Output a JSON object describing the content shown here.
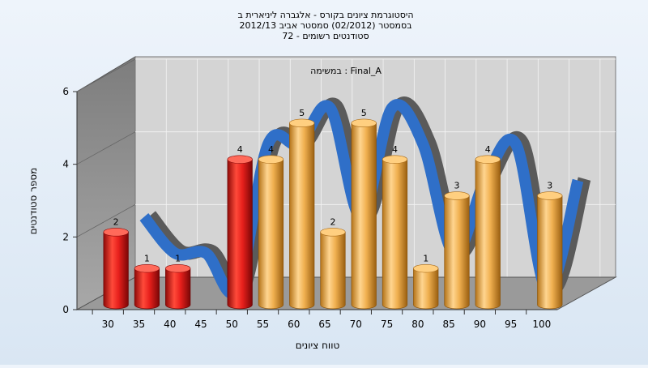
{
  "chart_data": {
    "type": "bar",
    "title_lines": [
      "היסטוגרמת ציונים בקורס - אלגברה ליניארית ב",
      "בסמסטר  (02/2012)  סמסטר אביב 2012/13",
      "סטודנטים רשומים - 72"
    ],
    "subtitle": "במשימה : Final_A",
    "xlabel": "טווח ציונים",
    "ylabel": "מספר סטודנטים",
    "ylim": [
      0,
      6
    ],
    "yticks": [
      0,
      2,
      4,
      6
    ],
    "grid": true,
    "categories": [
      "30",
      "35",
      "40",
      "45",
      "50",
      "55",
      "60",
      "65",
      "70",
      "75",
      "80",
      "85",
      "90",
      "95",
      "100"
    ],
    "values": [
      2,
      1,
      1,
      0,
      4,
      4,
      5,
      2,
      5,
      4,
      1,
      3,
      4,
      0,
      3
    ],
    "value_labels": [
      "2",
      "1",
      "1",
      "",
      "4",
      "4",
      "5",
      "2",
      "5",
      "4",
      "1",
      "3",
      "4",
      "",
      "3"
    ],
    "highlight_below": "55",
    "colors": {
      "fail_bar": "#e8201c",
      "pass_bar": "#f0b050",
      "curve_front": "#2f6fc8",
      "curve_back": "#5a5a5a",
      "plot_back_wall": "#d4d4d4",
      "plot_side_wall": "#8c8c8c",
      "plot_floor": "#9a9a9a"
    }
  }
}
